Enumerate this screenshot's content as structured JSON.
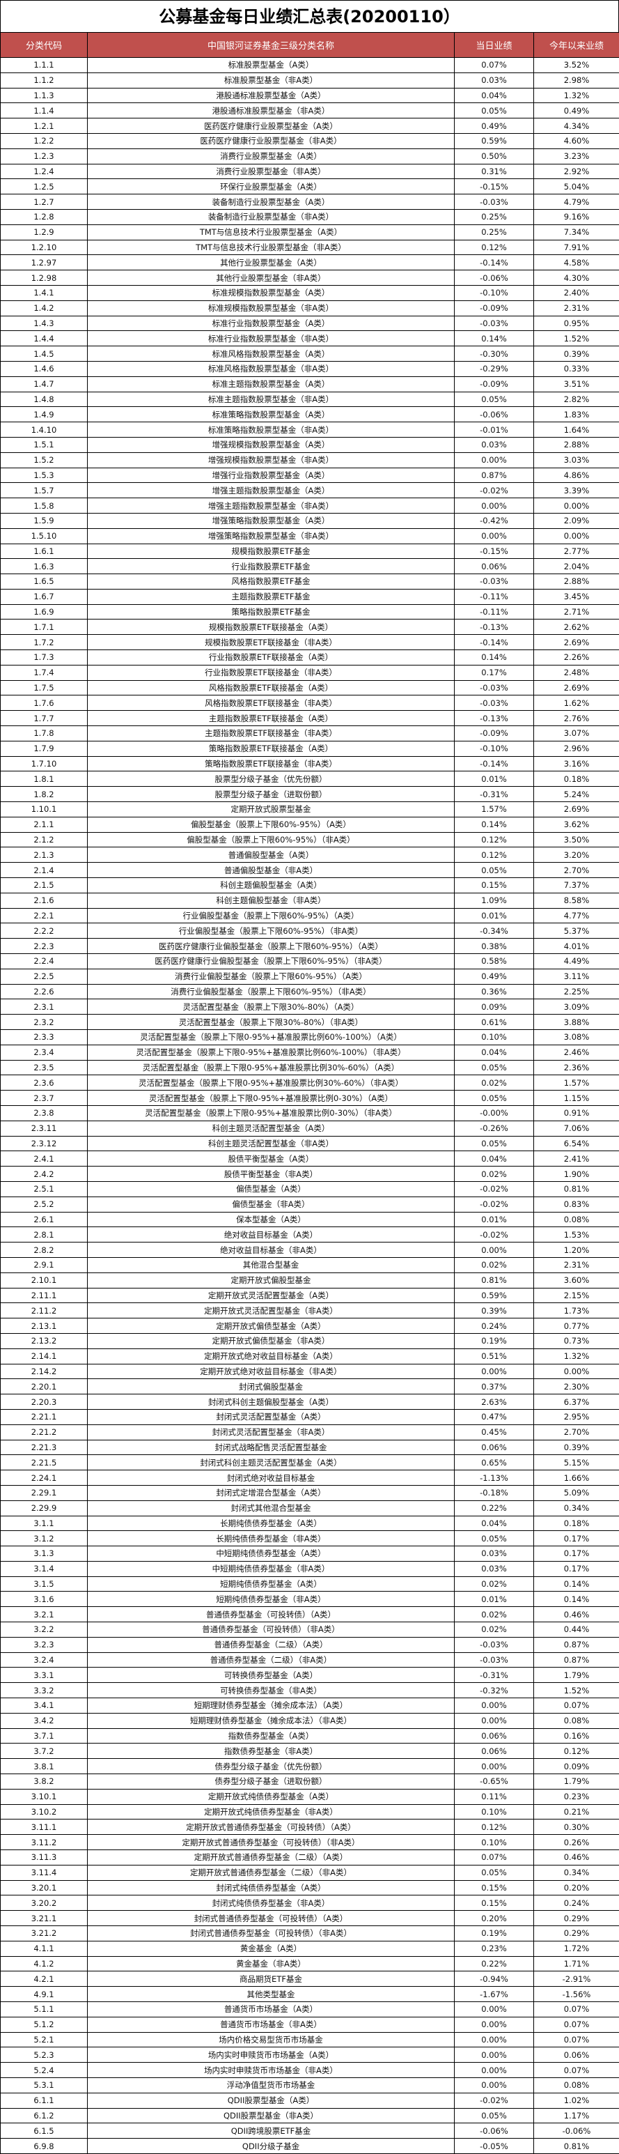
{
  "title": "公募基金每日业绩汇总表(20200110）",
  "header": {
    "code": "分类代码",
    "name": "中国银河证券基金三级分类名称",
    "daily": "当日业绩",
    "ytd": "今年以来业绩"
  },
  "colors": {
    "header_bg": "#c0504d",
    "header_text": "#ffffff",
    "border": "#000000"
  },
  "rows": [
    [
      "1.1.1",
      "标准股票型基金（A类）",
      "0.07%",
      "3.52%"
    ],
    [
      "1.1.2",
      "标准股票型基金（非A类）",
      "0.03%",
      "2.98%"
    ],
    [
      "1.1.3",
      "港股通标准股票型基金（A类）",
      "0.04%",
      "1.32%"
    ],
    [
      "1.1.4",
      "港股通标准股票型基金（非A类）",
      "0.05%",
      "0.49%"
    ],
    [
      "1.2.1",
      "医药医疗健康行业股票型基金（A类）",
      "0.49%",
      "4.34%"
    ],
    [
      "1.2.2",
      "医药医疗健康行业股票型基金（非A类）",
      "0.59%",
      "4.60%"
    ],
    [
      "1.2.3",
      "消费行业股票型基金（A类）",
      "0.50%",
      "3.23%"
    ],
    [
      "1.2.4",
      "消费行业股票型基金（非A类）",
      "0.31%",
      "2.92%"
    ],
    [
      "1.2.5",
      "环保行业股票型基金（A类）",
      "-0.15%",
      "5.04%"
    ],
    [
      "1.2.7",
      "装备制造行业股票型基金（A类）",
      "-0.03%",
      "4.79%"
    ],
    [
      "1.2.8",
      "装备制造行业股票型基金（非A类）",
      "0.25%",
      "9.16%"
    ],
    [
      "1.2.9",
      "TMT与信息技术行业股票型基金（A类）",
      "0.25%",
      "7.34%"
    ],
    [
      "1.2.10",
      "TMT与信息技术行业股票型基金（非A类）",
      "0.12%",
      "7.91%"
    ],
    [
      "1.2.97",
      "其他行业股票型基金（A类）",
      "-0.14%",
      "4.58%"
    ],
    [
      "1.2.98",
      "其他行业股票型基金（非A类）",
      "-0.06%",
      "4.30%"
    ],
    [
      "1.4.1",
      "标准规模指数股票型基金（A类）",
      "-0.10%",
      "2.40%"
    ],
    [
      "1.4.2",
      "标准规模指数股票型基金（非A类）",
      "-0.09%",
      "2.31%"
    ],
    [
      "1.4.3",
      "标准行业指数股票型基金（A类）",
      "-0.03%",
      "0.95%"
    ],
    [
      "1.4.4",
      "标准行业指数股票型基金（非A类）",
      "0.14%",
      "1.52%"
    ],
    [
      "1.4.5",
      "标准风格指数股票型基金（A类）",
      "-0.30%",
      "0.39%"
    ],
    [
      "1.4.6",
      "标准风格指数股票型基金（非A类）",
      "-0.29%",
      "0.33%"
    ],
    [
      "1.4.7",
      "标准主题指数股票型基金（A类）",
      "-0.09%",
      "3.51%"
    ],
    [
      "1.4.8",
      "标准主题指数股票型基金（非A类）",
      "0.05%",
      "2.82%"
    ],
    [
      "1.4.9",
      "标准策略指数股票型基金（A类）",
      "-0.06%",
      "1.83%"
    ],
    [
      "1.4.10",
      "标准策略指数股票型基金（非A类）",
      "-0.01%",
      "1.64%"
    ],
    [
      "1.5.1",
      "增强规模指数股票型基金（A类）",
      "0.03%",
      "2.88%"
    ],
    [
      "1.5.2",
      "增强规模指数股票型基金（非A类）",
      "0.00%",
      "3.03%"
    ],
    [
      "1.5.3",
      "增强行业指数股票型基金（A类）",
      "0.87%",
      "4.86%"
    ],
    [
      "1.5.7",
      "增强主题指数股票型基金（A类）",
      "-0.02%",
      "3.39%"
    ],
    [
      "1.5.8",
      "增强主题指数股票型基金（非A类）",
      "0.00%",
      "0.00%"
    ],
    [
      "1.5.9",
      "增强策略指数股票型基金（A类）",
      "-0.42%",
      "2.09%"
    ],
    [
      "1.5.10",
      "增强策略指数股票型基金（非A类）",
      "0.00%",
      "0.00%"
    ],
    [
      "1.6.1",
      "规模指数股票ETF基金",
      "-0.15%",
      "2.77%"
    ],
    [
      "1.6.3",
      "行业指数股票ETF基金",
      "0.06%",
      "2.04%"
    ],
    [
      "1.6.5",
      "风格指数股票ETF基金",
      "-0.03%",
      "2.88%"
    ],
    [
      "1.6.7",
      "主题指数股票ETF基金",
      "-0.11%",
      "3.45%"
    ],
    [
      "1.6.9",
      "策略指数股票ETF基金",
      "-0.11%",
      "2.71%"
    ],
    [
      "1.7.1",
      "规模指数股票ETF联接基金（A类）",
      "-0.13%",
      "2.62%"
    ],
    [
      "1.7.2",
      "规模指数股票ETF联接基金（非A类）",
      "-0.14%",
      "2.69%"
    ],
    [
      "1.7.3",
      "行业指数股票ETF联接基金（A类）",
      "0.14%",
      "2.26%"
    ],
    [
      "1.7.4",
      "行业指数股票ETF联接基金（非A类）",
      "0.17%",
      "2.48%"
    ],
    [
      "1.7.5",
      "风格指数股票ETF联接基金（A类）",
      "-0.03%",
      "2.69%"
    ],
    [
      "1.7.6",
      "风格指数股票ETF联接基金（非A类）",
      "-0.03%",
      "1.62%"
    ],
    [
      "1.7.7",
      "主题指数股票ETF联接基金（A类）",
      "-0.13%",
      "2.76%"
    ],
    [
      "1.7.8",
      "主题指数股票ETF联接基金（非A类）",
      "-0.09%",
      "3.07%"
    ],
    [
      "1.7.9",
      "策略指数股票ETF联接基金（A类）",
      "-0.10%",
      "2.96%"
    ],
    [
      "1.7.10",
      "策略指数股票ETF联接基金（非A类）",
      "-0.14%",
      "3.16%"
    ],
    [
      "1.8.1",
      "股票型分级子基金（优先份额）",
      "0.01%",
      "0.18%"
    ],
    [
      "1.8.2",
      "股票型分级子基金（进取份额）",
      "-0.31%",
      "5.24%"
    ],
    [
      "1.10.1",
      "定期开放式股票型基金",
      "1.57%",
      "2.69%"
    ],
    [
      "2.1.1",
      "偏股型基金（股票上下限60%-95%）（A类）",
      "0.14%",
      "3.62%"
    ],
    [
      "2.1.2",
      "偏股型基金（股票上下限60%-95%）（非A类）",
      "0.12%",
      "3.50%"
    ],
    [
      "2.1.3",
      "普通偏股型基金（A类）",
      "0.12%",
      "3.20%"
    ],
    [
      "2.1.4",
      "普通偏股型基金（非A类）",
      "0.05%",
      "2.70%"
    ],
    [
      "2.1.5",
      "科创主题偏股型基金（A类）",
      "0.15%",
      "7.37%"
    ],
    [
      "2.1.6",
      "科创主题偏股型基金（非A类）",
      "1.09%",
      "8.58%"
    ],
    [
      "2.2.1",
      "行业偏股型基金（股票上下限60%-95%）（A类）",
      "0.01%",
      "4.77%"
    ],
    [
      "2.2.2",
      "行业偏股型基金（股票上下限60%-95%）（非A类）",
      "-0.34%",
      "5.37%"
    ],
    [
      "2.2.3",
      "医药医疗健康行业偏股型基金（股票上下限60%-95%）（A类）",
      "0.38%",
      "4.01%"
    ],
    [
      "2.2.4",
      "医药医疗健康行业偏股型基金（股票上下限60%-95%）（非A类）",
      "0.58%",
      "4.49%"
    ],
    [
      "2.2.5",
      "消费行业偏股型基金（股票上下限60%-95%）（A类）",
      "0.49%",
      "3.11%"
    ],
    [
      "2.2.6",
      "消费行业偏股型基金（股票上下限60%-95%）（非A类）",
      "0.36%",
      "2.25%"
    ],
    [
      "2.3.1",
      "灵活配置型基金（股票上下限30%-80%）（A类）",
      "0.09%",
      "3.09%"
    ],
    [
      "2.3.2",
      "灵活配置型基金（股票上下限30%-80%）（非A类）",
      "0.61%",
      "3.88%"
    ],
    [
      "2.3.3",
      "灵活配置型基金（股票上下限0-95%+基准股票比例60%-100%）（A类）",
      "0.10%",
      "3.08%"
    ],
    [
      "2.3.4",
      "灵活配置型基金（股票上下限0-95%+基准股票比例60%-100%）（非A类）",
      "0.04%",
      "2.46%"
    ],
    [
      "2.3.5",
      "灵活配置型基金（股票上下限0-95%+基准股票比例30%-60%）（A类）",
      "0.05%",
      "2.36%"
    ],
    [
      "2.3.6",
      "灵活配置型基金（股票上下限0-95%+基准股票比例30%-60%）（非A类）",
      "0.02%",
      "1.57%"
    ],
    [
      "2.3.7",
      "灵活配置型基金（股票上下限0-95%+基准股票比例0-30%）（A类）",
      "0.05%",
      "1.15%"
    ],
    [
      "2.3.8",
      "灵活配置型基金（股票上下限0-95%+基准股票比例0-30%）（非A类）",
      "-0.00%",
      "0.91%"
    ],
    [
      "2.3.11",
      "科创主题灵活配置型基金（A类）",
      "-0.26%",
      "7.06%"
    ],
    [
      "2.3.12",
      "科创主题灵活配置型基金（非A类）",
      "0.05%",
      "6.54%"
    ],
    [
      "2.4.1",
      "股债平衡型基金（A类）",
      "0.04%",
      "2.41%"
    ],
    [
      "2.4.2",
      "股债平衡型基金（非A类）",
      "0.02%",
      "1.90%"
    ],
    [
      "2.5.1",
      "偏债型基金（A类）",
      "-0.02%",
      "0.81%"
    ],
    [
      "2.5.2",
      "偏债型基金（非A类）",
      "-0.02%",
      "0.83%"
    ],
    [
      "2.6.1",
      "保本型基金（A类）",
      "0.01%",
      "0.08%"
    ],
    [
      "2.8.1",
      "绝对收益目标基金（A类）",
      "-0.02%",
      "1.53%"
    ],
    [
      "2.8.2",
      "绝对收益目标基金（非A类）",
      "0.00%",
      "1.20%"
    ],
    [
      "2.9.1",
      "其他混合型基金",
      "0.02%",
      "2.31%"
    ],
    [
      "2.10.1",
      "定期开放式偏股型基金",
      "0.81%",
      "3.60%"
    ],
    [
      "2.11.1",
      "定期开放式灵活配置型基金（A类）",
      "0.59%",
      "2.15%"
    ],
    [
      "2.11.2",
      "定期开放式灵活配置型基金（非A类）",
      "0.39%",
      "1.73%"
    ],
    [
      "2.13.1",
      "定期开放式偏债型基金（A类）",
      "0.24%",
      "0.77%"
    ],
    [
      "2.13.2",
      "定期开放式偏债型基金（非A类）",
      "0.19%",
      "0.73%"
    ],
    [
      "2.14.1",
      "定期开放式绝对收益目标基金（A类）",
      "0.51%",
      "1.32%"
    ],
    [
      "2.14.2",
      "定期开放式绝对收益目标基金（非A类）",
      "0.00%",
      "0.00%"
    ],
    [
      "2.20.1",
      "封闭式偏股型基金",
      "0.37%",
      "2.30%"
    ],
    [
      "2.20.3",
      "封闭式科创主题偏股型基金（A类）",
      "2.63%",
      "6.37%"
    ],
    [
      "2.21.1",
      "封闭式灵活配置型基金（A类）",
      "0.47%",
      "2.95%"
    ],
    [
      "2.21.2",
      "封闭式灵活配置型基金（非A类）",
      "0.45%",
      "2.70%"
    ],
    [
      "2.21.3",
      "封闭式战略配售灵活配置型基金",
      "0.06%",
      "0.39%"
    ],
    [
      "2.21.5",
      "封闭式科创主题灵活配置型基金（A类）",
      "0.65%",
      "5.15%"
    ],
    [
      "2.24.1",
      "封闭式绝对收益目标基金",
      "-1.13%",
      "1.66%"
    ],
    [
      "2.29.1",
      "封闭式定增混合型基金（A类）",
      "-0.18%",
      "5.09%"
    ],
    [
      "2.29.9",
      "封闭式其他混合型基金",
      "0.22%",
      "0.34%"
    ],
    [
      "3.1.1",
      "长期纯债债券型基金（A类）",
      "0.04%",
      "0.18%"
    ],
    [
      "3.1.2",
      "长期纯债债券型基金（非A类）",
      "0.05%",
      "0.17%"
    ],
    [
      "3.1.3",
      "中短期纯债债券型基金（A类）",
      "0.03%",
      "0.17%"
    ],
    [
      "3.1.4",
      "中短期纯债债券型基金（非A类）",
      "0.03%",
      "0.17%"
    ],
    [
      "3.1.5",
      "短期纯债债券型基金（A类）",
      "0.02%",
      "0.14%"
    ],
    [
      "3.1.6",
      "短期纯债债券型基金（非A类）",
      "0.01%",
      "0.14%"
    ],
    [
      "3.2.1",
      "普通债券型基金（可投转债）（A类）",
      "0.02%",
      "0.46%"
    ],
    [
      "3.2.2",
      "普通债券型基金（可投转债）（非A类）",
      "0.02%",
      "0.44%"
    ],
    [
      "3.2.3",
      "普通债券型基金（二级）（A类）",
      "-0.03%",
      "0.87%"
    ],
    [
      "3.2.4",
      "普通债券型基金（二级）（非A类）",
      "-0.03%",
      "0.87%"
    ],
    [
      "3.3.1",
      "可转换债券型基金（A类）",
      "-0.31%",
      "1.79%"
    ],
    [
      "3.3.2",
      "可转换债券型基金（非A类）",
      "-0.32%",
      "1.52%"
    ],
    [
      "3.4.1",
      "短期理财债券型基金（摊余成本法）（A类）",
      "0.00%",
      "0.07%"
    ],
    [
      "3.4.2",
      "短期理财债券型基金（摊余成本法）（非A类）",
      "0.00%",
      "0.08%"
    ],
    [
      "3.7.1",
      "指数债券型基金（A类）",
      "0.06%",
      "0.16%"
    ],
    [
      "3.7.2",
      "指数债券型基金（非A类）",
      "0.06%",
      "0.12%"
    ],
    [
      "3.8.1",
      "债券型分级子基金（优先份额）",
      "0.00%",
      "0.09%"
    ],
    [
      "3.8.2",
      "债券型分级子基金（进取份额）",
      "-0.65%",
      "1.79%"
    ],
    [
      "3.10.1",
      "定期开放式纯债债券型基金（A类）",
      "0.11%",
      "0.23%"
    ],
    [
      "3.10.2",
      "定期开放式纯债债券型基金（非A类）",
      "0.10%",
      "0.21%"
    ],
    [
      "3.11.1",
      "定期开放式普通债券型基金（可投转债）（A类）",
      "0.12%",
      "0.30%"
    ],
    [
      "3.11.2",
      "定期开放式普通债券型基金（可投转债）（非A类）",
      "0.10%",
      "0.26%"
    ],
    [
      "3.11.3",
      "定期开放式普通债券型基金（二级）（A类）",
      "0.07%",
      "0.46%"
    ],
    [
      "3.11.4",
      "定期开放式普通债券型基金（二级）（非A类）",
      "0.05%",
      "0.34%"
    ],
    [
      "3.20.1",
      "封闭式纯债债券型基金（A类）",
      "0.15%",
      "0.20%"
    ],
    [
      "3.20.2",
      "封闭式纯债债券型基金（非A类）",
      "0.15%",
      "0.24%"
    ],
    [
      "3.21.1",
      "封闭式普通债券型基金（可投转债）（A类）",
      "0.20%",
      "0.29%"
    ],
    [
      "3.21.2",
      "封闭式普通债券型基金（可投转债）（非A类）",
      "0.19%",
      "0.29%"
    ],
    [
      "4.1.1",
      "黄金基金（A类）",
      "0.23%",
      "1.72%"
    ],
    [
      "4.1.2",
      "黄金基金（非A类）",
      "0.22%",
      "1.71%"
    ],
    [
      "4.2.1",
      "商品期货ETF基金",
      "-0.94%",
      "-2.91%"
    ],
    [
      "4.9.1",
      "其他类型基金",
      "-1.67%",
      "-1.56%"
    ],
    [
      "5.1.1",
      "普通货币市场基金（A类）",
      "0.00%",
      "0.07%"
    ],
    [
      "5.1.2",
      "普通货币市场基金（非A类）",
      "0.00%",
      "0.07%"
    ],
    [
      "5.2.1",
      "场内价格交易型货币市场基金",
      "0.00%",
      "0.07%"
    ],
    [
      "5.2.3",
      "场内实时申赎货币市场基金（A类）",
      "0.00%",
      "0.06%"
    ],
    [
      "5.2.4",
      "场内实时申赎货币市场基金（非A类）",
      "0.00%",
      "0.07%"
    ],
    [
      "5.3.1",
      "浮动净值型货币市场基金",
      "0.00%",
      "0.08%"
    ],
    [
      "6.1.1",
      "QDII股票型基金（A类）",
      "-0.02%",
      "1.02%"
    ],
    [
      "6.1.2",
      "QDII股票型基金（非A类）",
      "0.05%",
      "1.17%"
    ],
    [
      "6.1.5",
      "QDII跨境股票ETF基金",
      "-0.06%",
      "-0.06%"
    ],
    [
      "6.9.8",
      "QDII分级子基金",
      "-0.05%",
      "0.81%"
    ]
  ]
}
